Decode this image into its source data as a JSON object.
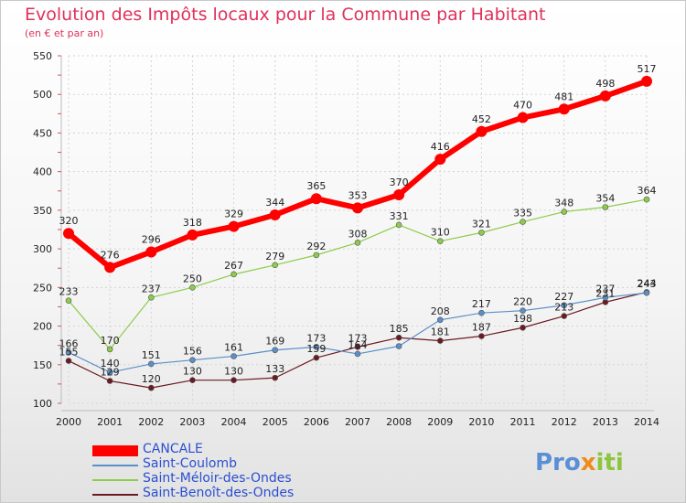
{
  "chart_data": {
    "type": "line",
    "title": "Evolution des Impôts locaux pour la Commune par Habitant",
    "subtitle": "(en € et par an)",
    "x": [
      "2000",
      "2001",
      "2002",
      "2003",
      "2004",
      "2005",
      "2006",
      "2007",
      "2008",
      "2009",
      "2010",
      "2011",
      "2012",
      "2013",
      "2014"
    ],
    "ylim": [
      100,
      550
    ],
    "yticks": [
      "100",
      "150",
      "200",
      "250",
      "300",
      "350",
      "400",
      "450",
      "500",
      "550"
    ],
    "grid": true,
    "legend_position": "bottom-left",
    "series": [
      {
        "name": "CANCALE",
        "color": "#ff0000",
        "width": 6,
        "values": [
          320,
          276,
          296,
          318,
          329,
          344,
          365,
          353,
          370,
          416,
          452,
          470,
          481,
          498,
          517
        ],
        "labels": [
          "320",
          "276",
          "296",
          "318",
          "329",
          "344",
          "365",
          "353",
          "370",
          "416",
          "452",
          "470",
          "481",
          "498",
          "517"
        ]
      },
      {
        "name": "Saint-Coulomb",
        "color": "#5a8fc8",
        "width": 1.2,
        "values": [
          166,
          140,
          151,
          156,
          161,
          169,
          173,
          164,
          174,
          208,
          217,
          220,
          227,
          237,
          243
        ],
        "labels": [
          "166",
          "140",
          "151",
          "156",
          "161",
          "169",
          "173",
          "164",
          "",
          "208",
          "217",
          "220",
          "227",
          "237",
          "243"
        ]
      },
      {
        "name": "Saint-Méloir-des-Ondes",
        "color": "#8ccc4a",
        "width": 1.2,
        "values": [
          233,
          170,
          237,
          250,
          267,
          279,
          292,
          308,
          331,
          310,
          321,
          335,
          348,
          354,
          364
        ],
        "labels": [
          "233",
          "170",
          "237",
          "250",
          "267",
          "279",
          "292",
          "308",
          "331",
          "310",
          "321",
          "335",
          "348",
          "354",
          "364"
        ]
      },
      {
        "name": "Saint-Benoît-des-Ondes",
        "color": "#6b1a22",
        "width": 1.2,
        "values": [
          155,
          129,
          120,
          130,
          130,
          133,
          159,
          173,
          185,
          181,
          187,
          198,
          213,
          231,
          244
        ],
        "labels": [
          "155",
          "129",
          "120",
          "130",
          "130",
          "133",
          "159",
          "173",
          "185",
          "181",
          "187",
          "198",
          "213",
          "231",
          "244"
        ]
      }
    ]
  },
  "brand": {
    "part1": "Pro",
    "part2": "x",
    "part3": "iti"
  }
}
